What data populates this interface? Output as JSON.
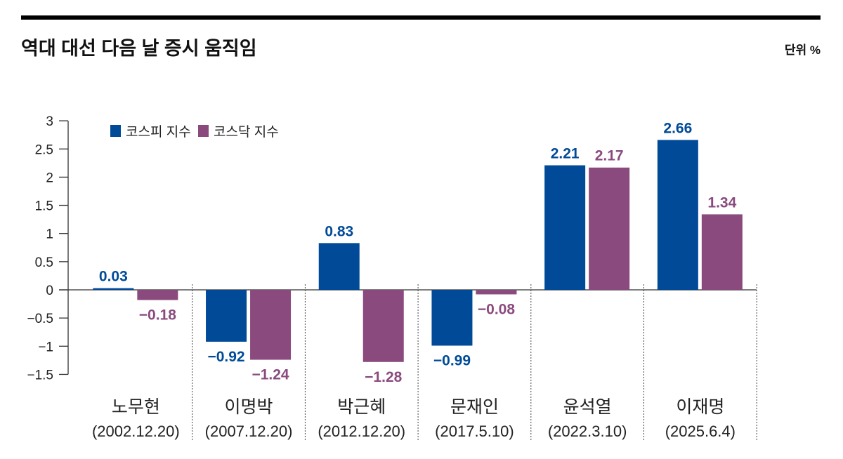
{
  "chart_data": {
    "type": "bar",
    "title": "역대 대선 다음 날 증시 움직임",
    "unit_label": "단위 %",
    "categories": [
      "노무현",
      "이명박",
      "박근혜",
      "문재인",
      "윤석열",
      "이재명"
    ],
    "category_dates": [
      "(2002.12.20)",
      "(2007.12.20)",
      "(2012.12.20)",
      "(2017.5.10)",
      "(2022.3.10)",
      "(2025.6.4)"
    ],
    "series": [
      {
        "name": "코스피 지수",
        "color": "#004a98",
        "values": [
          0.03,
          -0.92,
          0.83,
          -0.99,
          2.21,
          2.66
        ],
        "labels": [
          "0.03",
          "-0.92",
          "0.83",
          "-0.99",
          "2.21",
          "2.66"
        ]
      },
      {
        "name": "코스닥 지수",
        "color": "#8a4a7e",
        "values": [
          -0.18,
          -1.24,
          -1.28,
          -0.08,
          2.17,
          1.34
        ],
        "labels": [
          "-0.18",
          "-1.24",
          "-1.28",
          "-0.08",
          "2.17",
          "1.34"
        ]
      }
    ],
    "yticks": [
      "3",
      "2.5",
      "2",
      "1.5",
      "1",
      "0.5",
      "0",
      "-0.5",
      "-1",
      "-1.5"
    ],
    "ytick_values": [
      3,
      2.5,
      2,
      1.5,
      1,
      0.5,
      0,
      -0.5,
      -1,
      -1.5
    ],
    "ylim": [
      -1.5,
      3
    ],
    "grid": false,
    "legend_position": "top-left"
  }
}
